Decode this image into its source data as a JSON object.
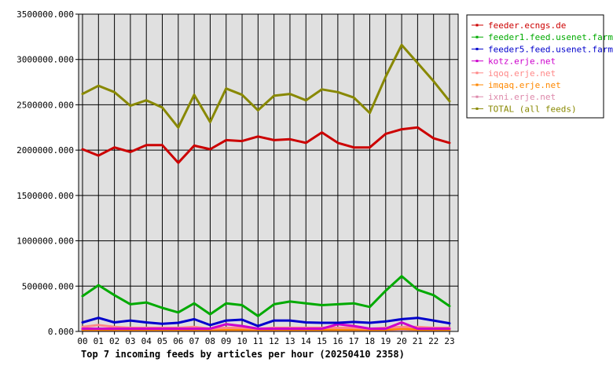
{
  "chart_data": {
    "type": "line",
    "title": "Top 7 incoming feeds by articles per hour (20250410 2358)",
    "xlabel": "",
    "ylabel": "",
    "categories": [
      "00",
      "01",
      "02",
      "03",
      "04",
      "05",
      "06",
      "07",
      "08",
      "09",
      "10",
      "11",
      "12",
      "13",
      "14",
      "15",
      "16",
      "17",
      "18",
      "19",
      "20",
      "21",
      "22",
      "23"
    ],
    "ylim": [
      0,
      3500000
    ],
    "yticks": [
      "0.000",
      "500000.000",
      "1000000.000",
      "1500000.000",
      "2000000.000",
      "2500000.000",
      "3000000.000",
      "3500000.000"
    ],
    "grid": true,
    "legend_position": "right",
    "series": [
      {
        "name": "feeder.ecngs.de",
        "color": "#cc0000",
        "values": [
          2010000,
          1940000,
          2030000,
          1980000,
          2055000,
          2055000,
          1860000,
          2050000,
          2010000,
          2110000,
          2100000,
          2150000,
          2110000,
          2120000,
          2080000,
          2195000,
          2080000,
          2030000,
          2030000,
          2180000,
          2230000,
          2250000,
          2130000,
          2080000
        ]
      },
      {
        "name": "feeder1.feed.usenet.farm",
        "color": "#00aa00",
        "values": [
          390000,
          510000,
          400000,
          300000,
          320000,
          260000,
          210000,
          310000,
          190000,
          310000,
          290000,
          170000,
          300000,
          330000,
          310000,
          290000,
          300000,
          310000,
          270000,
          450000,
          610000,
          460000,
          400000,
          280000
        ]
      },
      {
        "name": "feeder5.feed.usenet.farm",
        "color": "#0000cc",
        "values": [
          100000,
          150000,
          100000,
          120000,
          100000,
          85000,
          95000,
          135000,
          70000,
          120000,
          130000,
          60000,
          120000,
          120000,
          100000,
          95000,
          95000,
          105000,
          95000,
          110000,
          135000,
          150000,
          120000,
          90000
        ]
      },
      {
        "name": "kotz.erje.net",
        "color": "#cc00cc",
        "values": [
          30000,
          30000,
          30000,
          30000,
          30000,
          30000,
          30000,
          30000,
          30000,
          80000,
          60000,
          30000,
          30000,
          30000,
          30000,
          30000,
          80000,
          60000,
          30000,
          30000,
          100000,
          30000,
          30000,
          30000
        ]
      },
      {
        "name": "iqoq.erje.net",
        "color": "#ff8888",
        "values": [
          50000,
          70000,
          50000,
          40000,
          40000,
          40000,
          40000,
          50000,
          30000,
          40000,
          40000,
          30000,
          40000,
          40000,
          40000,
          40000,
          40000,
          40000,
          30000,
          40000,
          50000,
          50000,
          40000,
          40000
        ]
      },
      {
        "name": "imqaq.erje.net",
        "color": "#ff8800",
        "values": [
          20000,
          20000,
          20000,
          20000,
          20000,
          20000,
          20000,
          20000,
          20000,
          20000,
          20000,
          20000,
          20000,
          20000,
          20000,
          20000,
          20000,
          20000,
          20000,
          20000,
          30000,
          20000,
          20000,
          20000
        ]
      },
      {
        "name": "ixni.erje.net",
        "color": "#dd88aa",
        "values": [
          15000,
          15000,
          15000,
          15000,
          15000,
          15000,
          15000,
          15000,
          15000,
          15000,
          15000,
          15000,
          15000,
          15000,
          15000,
          15000,
          15000,
          15000,
          15000,
          15000,
          20000,
          15000,
          15000,
          15000
        ]
      },
      {
        "name": "TOTAL (all feeds)",
        "color": "#888800",
        "values": [
          2620000,
          2710000,
          2640000,
          2490000,
          2550000,
          2470000,
          2250000,
          2610000,
          2310000,
          2680000,
          2610000,
          2440000,
          2600000,
          2620000,
          2550000,
          2670000,
          2640000,
          2580000,
          2410000,
          2810000,
          3160000,
          2960000,
          2760000,
          2540000
        ]
      }
    ]
  }
}
